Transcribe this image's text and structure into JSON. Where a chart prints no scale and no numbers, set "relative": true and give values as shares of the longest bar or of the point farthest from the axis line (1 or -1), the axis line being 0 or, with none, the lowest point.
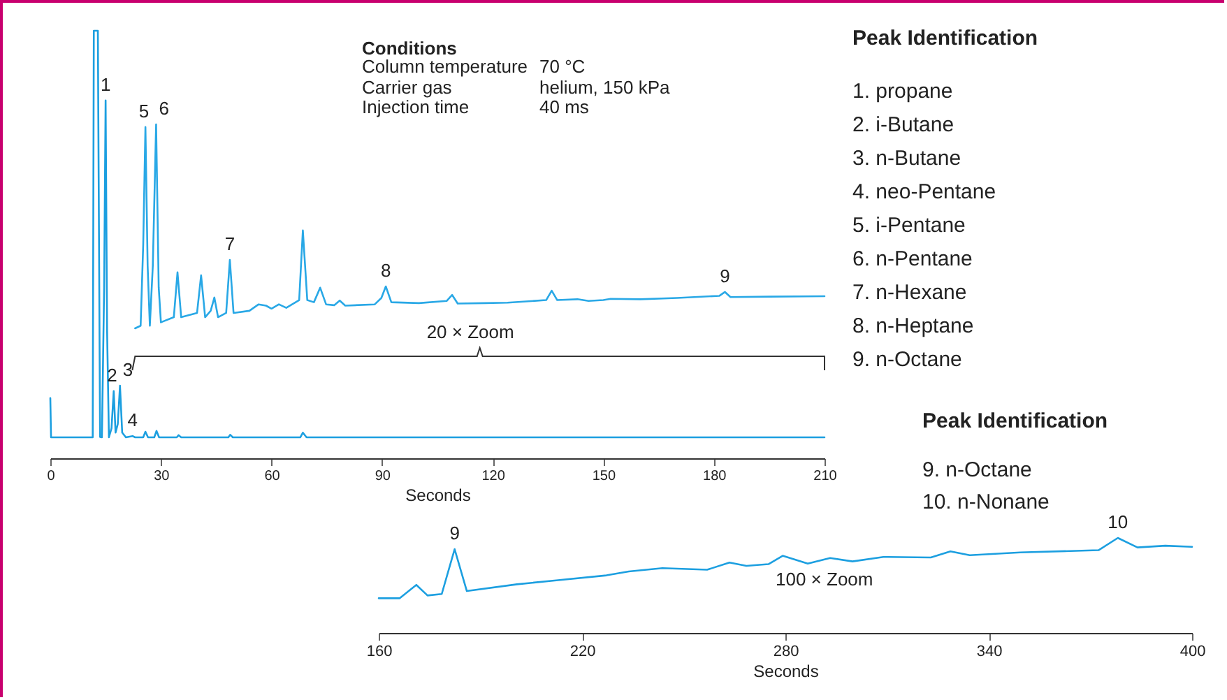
{
  "chart_data": [
    {
      "type": "line",
      "relative": true,
      "xlabel": "Seconds",
      "xlim": [
        0,
        210
      ],
      "xticks": [
        0,
        30,
        60,
        90,
        120,
        150,
        180,
        210
      ],
      "series": [
        {
          "color": "#1c9fe0",
          "x": [
            0,
            0.2,
            11.5,
            11.8,
            12.4,
            12.9,
            13.5,
            14.0,
            14.6,
            15.0,
            15.4,
            15.9,
            16.6,
            17.2,
            17.7,
            18.3,
            18.9,
            19.5,
            20.5,
            22.3,
            23.0,
            25.2,
            25.8,
            26.5,
            28.2,
            28.8,
            29.5,
            34.3,
            34.8,
            35.5,
            48.3,
            48.8,
            49.5,
            67.8,
            68.5,
            69.5,
            210
          ],
          "values": [
            0.141,
            0.049,
            0.049,
            1,
            1,
            1,
            0.05,
            0.049,
            0.4,
            0.837,
            0.3,
            0.049,
            0.07,
            0.157,
            0.06,
            0.08,
            0.17,
            0.06,
            0.049,
            0.052,
            0.049,
            0.049,
            0.062,
            0.049,
            0.049,
            0.064,
            0.049,
            0.049,
            0.054,
            0.049,
            0.049,
            0.055,
            0.049,
            0.049,
            0.06,
            0.049,
            0.049
          ]
        },
        {
          "color": "#29a8e6",
          "x": [
            23,
            24.5,
            25.2,
            25.8,
            26.4,
            27.0,
            27.8,
            28.7,
            29.4,
            30.0,
            33.5,
            34.5,
            35.5,
            39.8,
            40.9,
            42,
            43.5,
            44.5,
            45.5,
            47.7,
            48.7,
            49.7,
            54,
            56.5,
            58.5,
            60,
            62,
            64,
            67.5,
            68.5,
            69.7,
            71.5,
            73.2,
            74.8,
            77,
            78.5,
            80,
            88,
            89.8,
            91,
            92.5,
            100,
            107.5,
            109,
            110.5,
            118,
            124,
            134.5,
            136,
            137.5,
            143,
            146,
            150,
            152,
            160,
            170,
            181.5,
            183,
            184.5,
            195,
            210
          ],
          "values": [
            0.304,
            0.31,
            0.5,
            0.775,
            0.45,
            0.31,
            0.45,
            0.781,
            0.4,
            0.318,
            0.33,
            0.435,
            0.33,
            0.34,
            0.428,
            0.33,
            0.345,
            0.376,
            0.33,
            0.34,
            0.464,
            0.34,
            0.345,
            0.36,
            0.357,
            0.35,
            0.36,
            0.352,
            0.37,
            0.533,
            0.37,
            0.365,
            0.399,
            0.36,
            0.358,
            0.369,
            0.357,
            0.36,
            0.375,
            0.402,
            0.365,
            0.363,
            0.368,
            0.382,
            0.362,
            0.363,
            0.364,
            0.37,
            0.392,
            0.37,
            0.372,
            0.368,
            0.37,
            0.373,
            0.372,
            0.375,
            0.38,
            0.389,
            0.377,
            0.378,
            0.379
          ]
        }
      ],
      "annotations": [
        "Conditions",
        "Column temperature",
        "70 °C",
        "Carrier gas",
        "helium, 150 kPa",
        "Injection time",
        "40 ms",
        "Peak Identification",
        "1.  propane",
        "2.  i-Butane",
        "3.  n-Butane",
        "4.  neo-Pentane",
        "5.  i-Pentane",
        "6.  n-Pentane",
        "7.  n-Hexane",
        "8.  n-Heptane",
        "9.  n-Octane",
        "20 × Zoom",
        {
          "text": "1",
          "x": 15.0,
          "y": 0.837
        },
        {
          "text": "5",
          "x": 25.8,
          "y": 0.775
        },
        {
          "text": "6",
          "x": 28.7,
          "y": 0.781
        },
        {
          "text": "2",
          "x": 17.2,
          "y": 0.157
        },
        {
          "text": "3",
          "x": 18.9,
          "y": 0.17
        },
        {
          "text": "4",
          "x": 22.3,
          "y": 0.052
        },
        {
          "text": "7",
          "x": 48.7,
          "y": 0.464
        },
        {
          "text": "8",
          "x": 91,
          "y": 0.402
        },
        {
          "text": "9",
          "x": 183,
          "y": 0.389
        }
      ]
    },
    {
      "type": "line",
      "relative": true,
      "xlabel": "Seconds",
      "xlim": [
        160,
        400
      ],
      "xticks": [
        160,
        220,
        280,
        340,
        400
      ],
      "series": [
        {
          "color": "#1c9fe0",
          "x": [
            160,
            166.2,
            171.1,
            174.4,
            178.6,
            182.4,
            186,
            200.8,
            212.4,
            227.2,
            233.8,
            243.7,
            256.9,
            263.5,
            268.5,
            275,
            279.2,
            286.6,
            293.2,
            299.8,
            308.9,
            322.9,
            328.7,
            334.4,
            349.3,
            372.4,
            378.1,
            383.9,
            392.1,
            400
          ],
          "values": [
            0.365,
            0.365,
            0.506,
            0.394,
            0.41,
            0.882,
            0.441,
            0.512,
            0.553,
            0.606,
            0.647,
            0.682,
            0.665,
            0.741,
            0.706,
            0.724,
            0.812,
            0.729,
            0.788,
            0.753,
            0.8,
            0.794,
            0.859,
            0.818,
            0.847,
            0.871,
            1,
            0.9,
            0.918,
            0.906
          ]
        }
      ],
      "annotations": [
        "Peak Identification",
        "9.   n-Octane",
        "10. n-Nonane",
        "100 × Zoom",
        {
          "text": "9",
          "x": 182.4,
          "y": 0.882
        },
        {
          "text": "10",
          "x": 378.1,
          "y": 1
        }
      ]
    }
  ]
}
